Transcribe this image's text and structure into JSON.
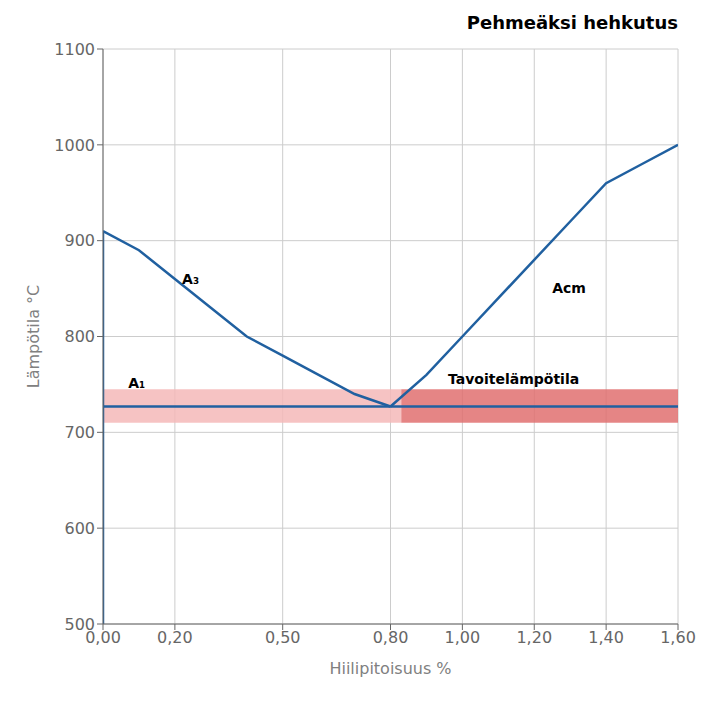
{
  "chart_data": {
    "type": "line",
    "title": "Pehmeäksi hehkutus",
    "xlabel": "Hiilipitoisuus %",
    "ylabel": "Lämpötila °C",
    "xlim": [
      0.0,
      1.6
    ],
    "ylim": [
      500,
      1100
    ],
    "xticks": [
      {
        "value": 0.0,
        "label": "0,00"
      },
      {
        "value": 0.2,
        "label": "0,20"
      },
      {
        "value": 0.5,
        "label": "0,50"
      },
      {
        "value": 0.8,
        "label": "0,80"
      },
      {
        "value": 1.0,
        "label": "1,00"
      },
      {
        "value": 1.2,
        "label": "1,20"
      },
      {
        "value": 1.4,
        "label": "1,40"
      },
      {
        "value": 1.6,
        "label": "1,60"
      }
    ],
    "yticks": [
      500,
      600,
      700,
      800,
      900,
      1000,
      1100
    ],
    "grid": true,
    "series": [
      {
        "x": [
          0.0,
          0.1,
          0.2,
          0.3,
          0.4,
          0.5,
          0.6,
          0.7,
          0.8
        ],
        "values": [
          910,
          890,
          860,
          830,
          800,
          780,
          760,
          740,
          727
        ],
        "color": "#2060a0"
      },
      {
        "x": [
          0.8,
          0.9,
          1.0,
          1.1,
          1.2,
          1.3,
          1.4,
          1.5,
          1.6
        ],
        "values": [
          727,
          760,
          800,
          840,
          880,
          920,
          960,
          980,
          1000
        ],
        "color": "#2060a0"
      },
      {
        "x": [
          0.0,
          0.0
        ],
        "values": [
          500,
          910
        ],
        "color": "#2060a0"
      }
    ],
    "hlines": [
      {
        "y": 727,
        "color": "#2060a0"
      }
    ],
    "bands": [
      {
        "x": [
          0.0,
          0.83
        ],
        "y": [
          710,
          745
        ],
        "color": "#f5b8b8"
      },
      {
        "x": [
          0.83,
          1.6
        ],
        "y": [
          710,
          745
        ],
        "color": "#e07070"
      }
    ],
    "annotations": [
      {
        "text": "A₁",
        "x": 0.07,
        "y": 746
      },
      {
        "text": "A₃",
        "x": 0.22,
        "y": 855
      },
      {
        "text": "Acm",
        "x": 1.25,
        "y": 845
      },
      {
        "text": "Tavoitelämpötila",
        "x": 0.96,
        "y": 750
      }
    ]
  }
}
